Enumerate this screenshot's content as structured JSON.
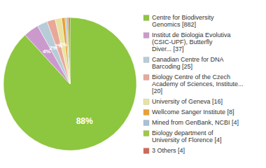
{
  "chart_data": {
    "type": "pie",
    "categories": [
      "Centre for Biodiversity\nGenomics [882]",
      "Institut de Biologia Evolutiva\n(CSIC-UPF), Butterfly\nDiver... [37]",
      "Canadian Centre for DNA\nBarcoding [25]",
      "Biology Centre of the Czech\nAcademy of Sciences, Institute...\n[20]",
      "University of Geneva [16]",
      "Wellcome Sanger Institute [8]",
      "Mined from GenBank, NCBI [4]",
      "Biology department of\nUniversity of Florence [4]",
      "3 Others [4]"
    ],
    "values": [
      88.2,
      3.7,
      2.5,
      2.0,
      1.6,
      0.8,
      0.4,
      0.4,
      0.4
    ],
    "value_labels": [
      "88%",
      "4%",
      "2%",
      "2%",
      "2%",
      null,
      null,
      null,
      null
    ],
    "colors": [
      "#8dc63f",
      "#cc99cc",
      "#b8ccd8",
      "#e8a898",
      "#e8e4a0",
      "#e8a030",
      "#a8c0d8",
      "#a0c840",
      "#d06858"
    ],
    "data_labels": true,
    "legend": "right"
  }
}
